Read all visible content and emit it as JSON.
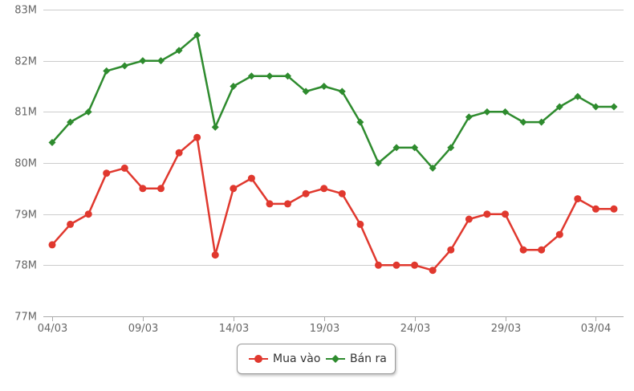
{
  "chart_data": {
    "type": "line",
    "title": "",
    "xlabel": "",
    "ylabel": "",
    "x_tick_labels": [
      "04/03",
      "09/03",
      "14/03",
      "19/03",
      "24/03",
      "29/03",
      "03/04"
    ],
    "y_tick_labels": [
      "77M",
      "78M",
      "79M",
      "80M",
      "81M",
      "82M",
      "83M"
    ],
    "ylim": [
      77,
      83
    ],
    "y_unit": "M",
    "grid": "horizontal",
    "legend_position": "bottom-center",
    "point_count": 32,
    "series": [
      {
        "name": "Mua vào",
        "color": "#e0382e",
        "marker": "circle",
        "values": [
          78.4,
          78.8,
          79.0,
          79.8,
          79.9,
          79.5,
          79.5,
          80.2,
          80.5,
          78.2,
          79.5,
          79.7,
          79.2,
          79.2,
          79.4,
          79.5,
          79.4,
          78.8,
          78.0,
          78.0,
          78.0,
          77.9,
          78.3,
          78.9,
          79.0,
          79.0,
          78.3,
          78.3,
          78.6,
          79.3,
          79.1,
          79.1
        ]
      },
      {
        "name": "Bán ra",
        "color": "#2e8b2e",
        "marker": "diamond",
        "values": [
          80.4,
          80.8,
          81.0,
          81.8,
          81.9,
          82.0,
          82.0,
          82.2,
          82.5,
          80.7,
          81.5,
          81.7,
          81.7,
          81.7,
          81.4,
          81.5,
          81.4,
          80.8,
          80.0,
          80.3,
          80.3,
          79.9,
          80.3,
          80.9,
          81.0,
          81.0,
          80.8,
          80.8,
          81.1,
          81.3,
          81.1,
          81.1
        ]
      }
    ]
  }
}
